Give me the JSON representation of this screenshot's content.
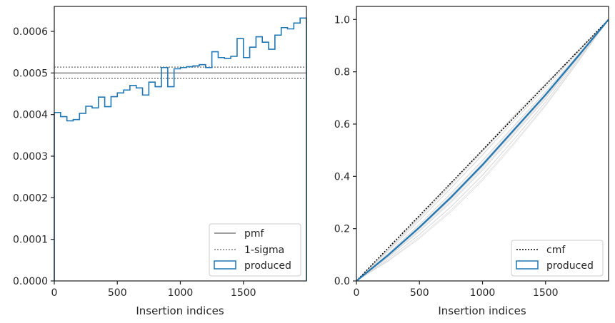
{
  "colors": {
    "produced": "#1f77b4",
    "pmf": "#808080",
    "sigma": "#808080",
    "cmf": "#000000",
    "realizations": "#d3d3d3",
    "axes": "#262626"
  },
  "chart_data": [
    {
      "type": "step",
      "title": "",
      "xlabel": "Insertion indices",
      "ylabel": "",
      "xlim": [
        0,
        2000
      ],
      "ylim": [
        0,
        0.00066
      ],
      "grid": false,
      "legend_position": "lower-right",
      "xticks": [
        0,
        500,
        1000,
        1500
      ],
      "xtick_labels": [
        "0",
        "500",
        "1000",
        "1500"
      ],
      "yticks": [
        0,
        0.0001,
        0.0002,
        0.0003,
        0.0004,
        0.0005,
        0.0006
      ],
      "ytick_labels": [
        "0.0000",
        "0.0001",
        "0.0002",
        "0.0003",
        "0.0004",
        "0.0005",
        "0.0006"
      ],
      "legend": [
        "pmf",
        "1-sigma",
        "produced"
      ],
      "pmf": 0.0005,
      "sigma_band": [
        0.000487,
        0.000514
      ],
      "bin_edges": [
        0,
        50,
        100,
        150,
        200,
        250,
        300,
        350,
        400,
        450,
        500,
        550,
        600,
        650,
        700,
        750,
        800,
        850,
        900,
        950,
        1000,
        1050,
        1100,
        1150,
        1200,
        1250,
        1300,
        1350,
        1400,
        1450,
        1500,
        1550,
        1600,
        1650,
        1700,
        1750,
        1800,
        1850,
        1900,
        1950,
        2000
      ],
      "values": [
        0.000405,
        0.000395,
        0.000385,
        0.000388,
        0.000403,
        0.00042,
        0.000416,
        0.000442,
        0.000419,
        0.000443,
        0.000452,
        0.000459,
        0.00047,
        0.000464,
        0.000447,
        0.000478,
        0.000467,
        0.000513,
        0.000467,
        0.00051,
        0.000513,
        0.000515,
        0.000517,
        0.00052,
        0.000513,
        0.000551,
        0.000537,
        0.000535,
        0.00054,
        0.000583,
        0.000537,
        0.000562,
        0.000587,
        0.000574,
        0.000557,
        0.000591,
        0.000609,
        0.000606,
        0.00062,
        0.000632
      ]
    },
    {
      "type": "line",
      "title": "",
      "xlabel": "Insertion indices",
      "ylabel": "",
      "xlim": [
        0,
        2000
      ],
      "ylim": [
        0,
        1.05
      ],
      "grid": false,
      "legend_position": "lower-right",
      "xticks": [
        0,
        500,
        1000,
        1500
      ],
      "xtick_labels": [
        "0",
        "500",
        "1000",
        "1500"
      ],
      "yticks": [
        0,
        0.2,
        0.4,
        0.6,
        0.8,
        1.0
      ],
      "ytick_labels": [
        "0.0",
        "0.2",
        "0.4",
        "0.6",
        "0.8",
        "1.0"
      ],
      "legend": [
        "cmf",
        "produced"
      ],
      "cmf": {
        "x": [
          0,
          2000
        ],
        "y": [
          0,
          1.0
        ]
      },
      "produced": {
        "x": [
          0,
          250,
          500,
          750,
          1000,
          1250,
          1500,
          1750,
          2000
        ],
        "y": [
          0,
          0.098,
          0.205,
          0.32,
          0.444,
          0.578,
          0.712,
          0.855,
          1.0
        ]
      },
      "realization_count": 20
    }
  ]
}
